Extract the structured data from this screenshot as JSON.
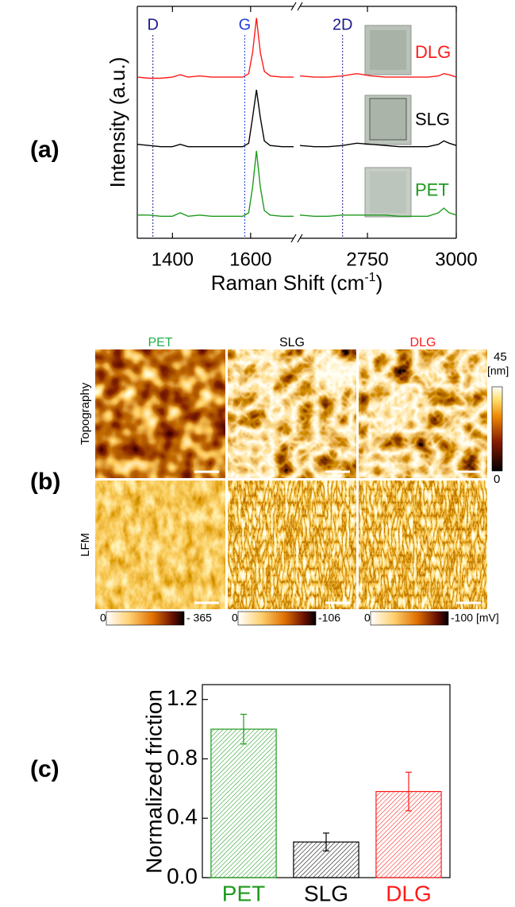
{
  "panel_labels": [
    "(a)",
    "(b)",
    "(c)"
  ],
  "chart_data": [
    {
      "type": "line",
      "y_label": "Intensity (a.u.)",
      "x_label": [
        "Raman Shift (cm",
        "-1",
        ")"
      ],
      "xlim": [
        1310,
        3000
      ],
      "x_break": [
        1710,
        2560
      ],
      "xticks": [
        1400,
        1600,
        2750,
        3000
      ],
      "ylim": [
        0,
        100
      ],
      "annotations": [
        {
          "text": "D",
          "x": 1350,
          "color": "#1a1a8c"
        },
        {
          "text": "G",
          "x": 1585,
          "color": "#1f3fdc"
        },
        {
          "text": "2D",
          "x": 2680,
          "color": "#1a1a8c"
        }
      ],
      "x": [
        1310,
        1340,
        1370,
        1400,
        1420,
        1440,
        1470,
        1500,
        1530,
        1560,
        1580,
        1595,
        1605,
        1615,
        1625,
        1635,
        1650,
        1680,
        1710,
        2560,
        2600,
        2640,
        2680,
        2720,
        2760,
        2800,
        2840,
        2880,
        2920,
        2950,
        2965,
        2980,
        3000
      ],
      "series": [
        {
          "name": "DLG",
          "color": "#ff1a1a",
          "values": [
            69.5,
            69,
            69,
            69.5,
            70.5,
            69.5,
            70,
            69.5,
            69.5,
            69.5,
            69.5,
            71,
            80,
            95,
            80,
            72,
            70,
            69.5,
            69.5,
            70,
            69.5,
            69.5,
            70,
            71,
            70,
            69.5,
            69.5,
            69.5,
            69.5,
            70,
            71,
            70.5,
            69.5
          ]
        },
        {
          "name": "SLG",
          "color": "#000000",
          "values": [
            40.5,
            40,
            39.5,
            39.5,
            40.5,
            39.5,
            39.5,
            39.5,
            39.5,
            39.5,
            39.5,
            41,
            52,
            64,
            52,
            42,
            40,
            39.5,
            39.5,
            40,
            39.5,
            39.5,
            40,
            41,
            40.5,
            40,
            39.5,
            39.5,
            39.5,
            40.5,
            42,
            41,
            40
          ]
        },
        {
          "name": "PET",
          "color": "#1e9a1e",
          "values": [
            10,
            10,
            9.5,
            9.5,
            11,
            9.5,
            10,
            9.5,
            9.5,
            9.5,
            9.5,
            11,
            22,
            37.7,
            22,
            12,
            10,
            9.5,
            9.5,
            10,
            9.5,
            9.5,
            10,
            10,
            10,
            10,
            9.5,
            9.5,
            9.5,
            11,
            13,
            11,
            10
          ]
        }
      ]
    },
    {
      "type": "bar",
      "y_label": "Normalized friction",
      "categories": [
        "PET",
        "SLG",
        "DLG"
      ],
      "values": [
        1.0,
        0.24,
        0.58
      ],
      "errors": [
        0.1,
        0.06,
        0.13
      ],
      "colors": [
        "#1e9a1e",
        "#000000",
        "#ff1a1a"
      ],
      "ylim": [
        0,
        1.3
      ],
      "yticks": [
        {
          "value": 0,
          "label": "0.0"
        },
        0.4,
        0.8,
        1.2
      ]
    }
  ],
  "afm": {
    "columns": [
      {
        "name": "PET",
        "color": "#22b04a"
      },
      {
        "name": "SLG",
        "color": "#000000"
      },
      {
        "name": "DLG",
        "color": "#ff1a1a"
      }
    ],
    "rows": [
      "Topography",
      "LFM"
    ],
    "topography_colorbar": {
      "lim": [
        0,
        45
      ],
      "unit": "[nm]"
    },
    "lfm_colorbars": [
      {
        "lim": [
          0,
          {
            "value": -365,
            "label": "- 365"
          }
        ]
      },
      {
        "lim": [
          0,
          -106
        ]
      },
      {
        "lim": [
          0,
          -100
        ]
      }
    ],
    "lfm_unit": "[mV]"
  }
}
